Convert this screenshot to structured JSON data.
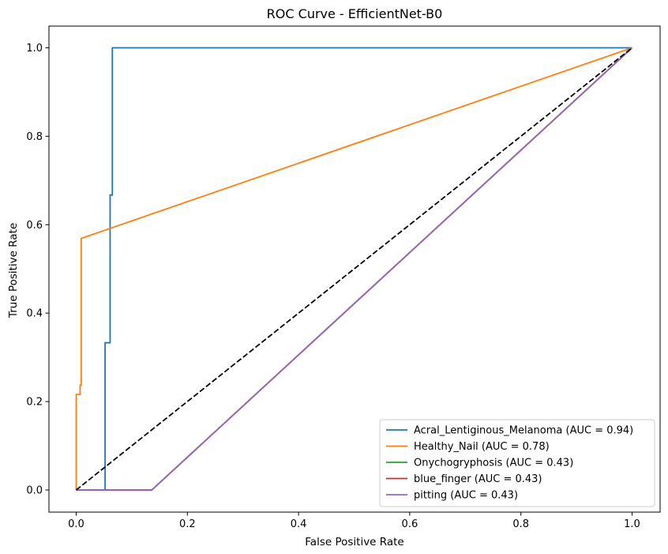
{
  "chart_data": {
    "type": "line",
    "title": "ROC Curve - EfficientNet-B0",
    "xlabel": "False Positive Rate",
    "ylabel": "True Positive Rate",
    "xlim": [
      -0.05,
      1.05
    ],
    "ylim": [
      -0.05,
      1.05
    ],
    "xticks": [
      0.0,
      0.2,
      0.4,
      0.6,
      0.8,
      1.0
    ],
    "yticks": [
      0.0,
      0.2,
      0.4,
      0.6,
      0.8,
      1.0
    ],
    "xtick_labels": [
      "0.0",
      "0.2",
      "0.4",
      "0.6",
      "0.8",
      "1.0"
    ],
    "ytick_labels": [
      "0.0",
      "0.2",
      "0.4",
      "0.6",
      "0.8",
      "1.0"
    ],
    "grid": false,
    "legend_position": "lower-right",
    "series": [
      {
        "name": "Acral_Lentiginous_Melanoma (AUC = 0.94)",
        "color": "#1f77b4",
        "x": [
          0.0,
          0.052,
          0.052,
          0.052,
          0.058,
          0.058,
          0.061,
          0.061,
          0.065,
          0.065,
          1.0
        ],
        "y": [
          0.0,
          0.0,
          0.0,
          0.333,
          0.333,
          0.333,
          0.333,
          0.667,
          0.667,
          1.0,
          1.0
        ]
      },
      {
        "name": "Healthy_Nail (AUC = 0.78)",
        "color": "#ff7f0e",
        "x": [
          0.0,
          0.0,
          0.007,
          0.007,
          0.009,
          0.009,
          1.0
        ],
        "y": [
          0.0,
          0.216,
          0.216,
          0.237,
          0.237,
          0.569,
          1.0
        ]
      },
      {
        "name": "Onychogryphosis (AUC = 0.43)",
        "color": "#2ca02c",
        "x": [
          0.0,
          0.136,
          1.0
        ],
        "y": [
          0.0,
          0.0,
          1.0
        ]
      },
      {
        "name": "blue_finger (AUC = 0.43)",
        "color": "#d62728",
        "x": [
          0.0,
          0.136,
          1.0
        ],
        "y": [
          0.0,
          0.0,
          1.0
        ]
      },
      {
        "name": "pitting (AUC = 0.43)",
        "color": "#9467bd",
        "x": [
          0.0,
          0.136,
          1.0
        ],
        "y": [
          0.0,
          0.0,
          1.0
        ]
      }
    ],
    "reference_line": {
      "x": [
        0,
        1
      ],
      "y": [
        0,
        1
      ],
      "color": "#000000",
      "style": "dashed"
    }
  }
}
